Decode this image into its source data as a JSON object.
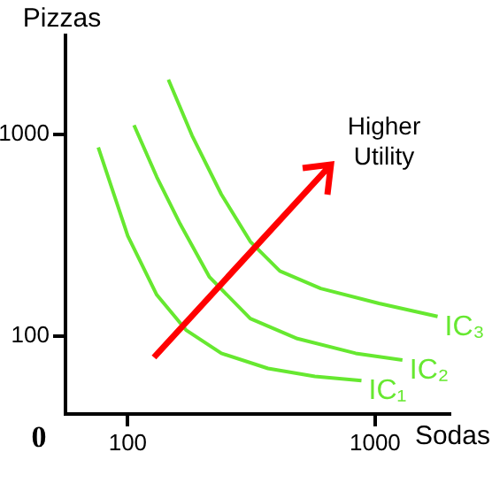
{
  "chart_data": {
    "type": "line",
    "xlabel": "Sodas",
    "ylabel": "Pizzas",
    "log": "xy",
    "xlim": [
      56,
      2000
    ],
    "ylim": [
      41,
      3100
    ],
    "xticks": [
      100,
      1000
    ],
    "yticks": [
      100,
      1000
    ],
    "grid": false,
    "legend": false,
    "marker": "none",
    "line_style": "solid",
    "annotations": [
      "Higher Utility",
      "0"
    ],
    "series": [
      {
        "name": "IC₁",
        "color": "#66e830",
        "x": [
          76,
          100,
          131,
          172,
          239,
          369,
          571,
          881
        ],
        "values": [
          863,
          314,
          160,
          107,
          82,
          69,
          63,
          60
        ]
      },
      {
        "name": "IC₂",
        "color": "#66e830",
        "x": [
          106,
          131,
          163,
          214,
          313,
          485,
          835,
          1290
        ],
        "values": [
          1112,
          615,
          359,
          196,
          122,
          97,
          82,
          76
        ]
      },
      {
        "name": "IC₃",
        "color": "#66e830",
        "x": [
          146,
          182,
          239,
          313,
          412,
          603,
          1038,
          1790
        ],
        "values": [
          1871,
          986,
          504,
          294,
          210,
          172,
          145,
          125
        ]
      }
    ]
  }
}
